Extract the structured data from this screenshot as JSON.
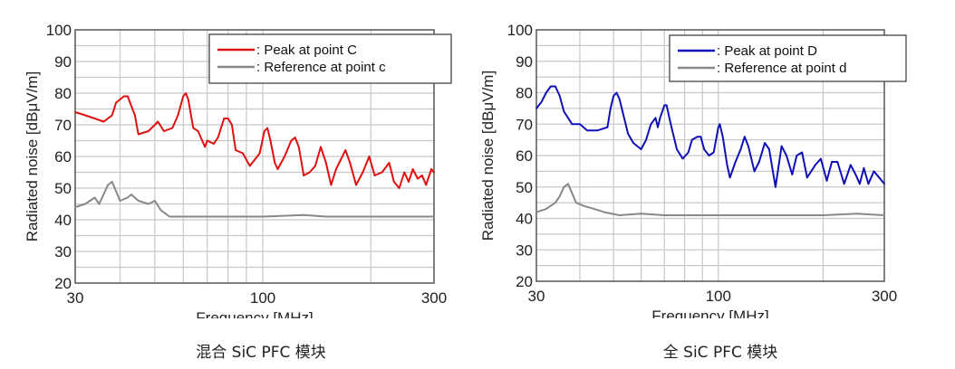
{
  "colors": {
    "peak_c": "#e01010",
    "peak_d": "#1010b8",
    "reference": "#888888",
    "grid": "#c8c8c8"
  },
  "chart_data": [
    {
      "type": "line",
      "caption": "混合 SiC PFC 模块",
      "xlabel": "Frequency [MHz]",
      "ylabel": "Radiated noise [dBμV/m]",
      "xscale": "log",
      "xlim": [
        30,
        300
      ],
      "ylim": [
        20,
        100
      ],
      "xticks": [
        30,
        100,
        300
      ],
      "yticks": [
        20,
        30,
        40,
        50,
        60,
        70,
        80,
        90,
        100
      ],
      "grid": true,
      "legend_position": "top-right",
      "series": [
        {
          "name": ": Peak at point C",
          "color": "#e01010",
          "x": [
            30,
            32,
            34,
            36,
            37,
            38,
            39,
            41,
            42,
            44,
            45,
            48,
            50,
            51,
            53,
            56,
            58,
            60,
            61,
            62,
            64,
            66,
            69,
            70,
            73,
            75,
            78,
            80,
            82,
            84,
            88,
            92,
            95,
            98,
            101,
            103,
            105,
            108,
            110,
            115,
            120,
            123,
            126,
            130,
            135,
            140,
            145,
            150,
            155,
            160,
            170,
            175,
            182,
            190,
            198,
            205,
            215,
            225,
            232,
            240,
            248,
            255,
            262,
            270,
            278,
            285,
            295,
            300
          ],
          "y": [
            74,
            73,
            72,
            71,
            72,
            73,
            77,
            79,
            79,
            73,
            67,
            68,
            70,
            71,
            68,
            69,
            73,
            79,
            80,
            78,
            69,
            68,
            63,
            65,
            64,
            66,
            72,
            72,
            70,
            62,
            61,
            57,
            59,
            61,
            68,
            69,
            65,
            58,
            56,
            60,
            65,
            66,
            63,
            54,
            55,
            57,
            63,
            58,
            51,
            56,
            62,
            58,
            51,
            55,
            60,
            54,
            55,
            58,
            52,
            50,
            55,
            52,
            56,
            53,
            54,
            51,
            56,
            55
          ]
        },
        {
          "name": ": Reference at point c",
          "color": "#888888",
          "x": [
            30,
            32,
            34,
            35,
            37,
            38,
            39,
            40,
            42,
            43,
            45,
            48,
            50,
            52,
            55,
            60,
            70,
            80,
            100,
            130,
            150,
            200,
            250,
            300
          ],
          "y": [
            44,
            45,
            47,
            45,
            51,
            52,
            49,
            46,
            47,
            48,
            46,
            45,
            46,
            43,
            41,
            41,
            41,
            41,
            41,
            41.5,
            41,
            41,
            41,
            41
          ]
        }
      ]
    },
    {
      "type": "line",
      "caption": "全 SiC PFC 模块",
      "xlabel": "Frequency [MHz]",
      "ylabel": "Radiated noise [dBμV/m]",
      "xscale": "log",
      "xlim": [
        30,
        300
      ],
      "ylim": [
        20,
        100
      ],
      "xticks": [
        30,
        100,
        300
      ],
      "yticks": [
        20,
        30,
        40,
        50,
        60,
        70,
        80,
        90,
        100
      ],
      "grid": true,
      "legend_position": "top-right",
      "series": [
        {
          "name": ": Peak at point D",
          "color": "#1010b8",
          "x": [
            30,
            31,
            32,
            33,
            34,
            35,
            36,
            38,
            40,
            42,
            45,
            48,
            49,
            50,
            51,
            52,
            55,
            57,
            60,
            62,
            64,
            66,
            67,
            68,
            70,
            71,
            73,
            76,
            79,
            82,
            84,
            87,
            89,
            91,
            94,
            97,
            100,
            101,
            103,
            106,
            108,
            112,
            116,
            119,
            122,
            127,
            131,
            136,
            140,
            146,
            152,
            157,
            163,
            168,
            174,
            180,
            190,
            197,
            205,
            212,
            220,
            230,
            240,
            248,
            255,
            262,
            270,
            280,
            290,
            300
          ],
          "y": [
            75,
            77,
            80,
            82,
            82,
            79,
            74,
            70,
            70,
            68,
            68,
            69,
            75,
            79,
            80,
            78,
            67,
            64,
            62,
            65,
            70,
            72,
            69,
            72,
            76,
            76,
            70,
            62,
            59,
            61,
            65,
            66,
            66,
            62,
            60,
            61,
            69,
            70,
            66,
            57,
            53,
            58,
            62,
            66,
            63,
            55,
            58,
            64,
            62,
            50,
            63,
            60,
            54,
            60,
            61,
            53,
            57,
            59,
            52,
            58,
            58,
            51,
            57,
            54,
            51,
            56,
            51,
            55,
            53,
            51
          ]
        },
        {
          "name": ": Reference at point d",
          "color": "#888888",
          "x": [
            30,
            32,
            34,
            35,
            36,
            37,
            38,
            39,
            41,
            44,
            47,
            52,
            60,
            70,
            100,
            150,
            200,
            250,
            300
          ],
          "y": [
            42,
            43,
            45,
            47,
            50,
            51,
            48,
            45,
            44,
            43,
            42,
            41,
            41.5,
            41,
            41,
            41,
            41,
            41.5,
            41
          ]
        }
      ]
    }
  ]
}
